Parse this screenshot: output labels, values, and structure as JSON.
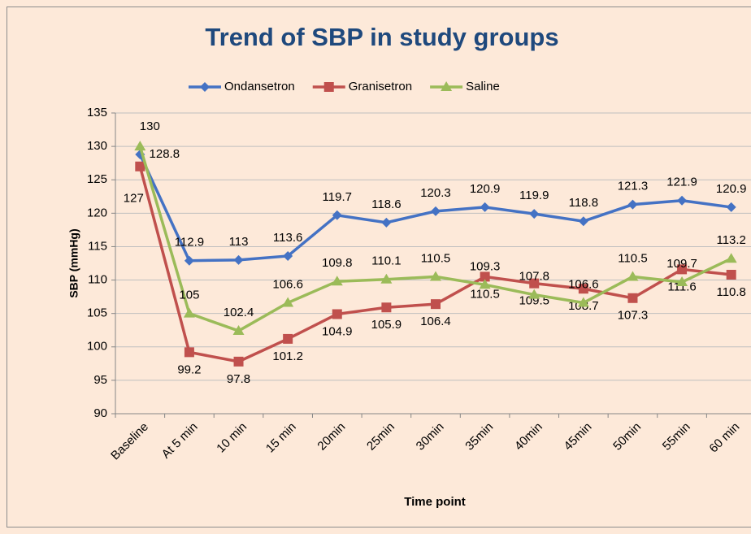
{
  "chart_data": {
    "type": "line",
    "title": "Trend of SBP in study groups",
    "x_label": "Time point",
    "y_label": "SBP (mmHg)",
    "categories": [
      "Baseline",
      "At 5 min",
      "10 min",
      "15 min",
      "20min",
      "25min",
      "30min",
      "35min",
      "40min",
      "45min",
      "50min",
      "55min",
      "60 min"
    ],
    "series": [
      {
        "name": "Ondansetron",
        "color": "#4472c4",
        "marker": "diamond",
        "values": [
          128.8,
          112.9,
          113,
          113.6,
          119.7,
          118.6,
          120.3,
          120.9,
          119.9,
          118.8,
          121.3,
          121.9,
          120.9
        ]
      },
      {
        "name": "Granisetron",
        "color": "#c0504d",
        "marker": "square",
        "values": [
          127,
          99.2,
          97.8,
          101.2,
          104.9,
          105.9,
          106.4,
          110.5,
          109.5,
          108.7,
          107.3,
          111.6,
          110.8
        ]
      },
      {
        "name": "Saline",
        "color": "#9bbb59",
        "marker": "triangle",
        "values": [
          130,
          105,
          102.4,
          106.6,
          109.8,
          110.1,
          110.5,
          109.3,
          107.8,
          106.6,
          110.5,
          109.7,
          113.2
        ]
      }
    ],
    "ylim": [
      90,
      135
    ],
    "yticks": [
      90,
      95,
      100,
      105,
      110,
      115,
      120,
      125,
      130,
      135
    ],
    "grid": true,
    "legend": "top"
  }
}
